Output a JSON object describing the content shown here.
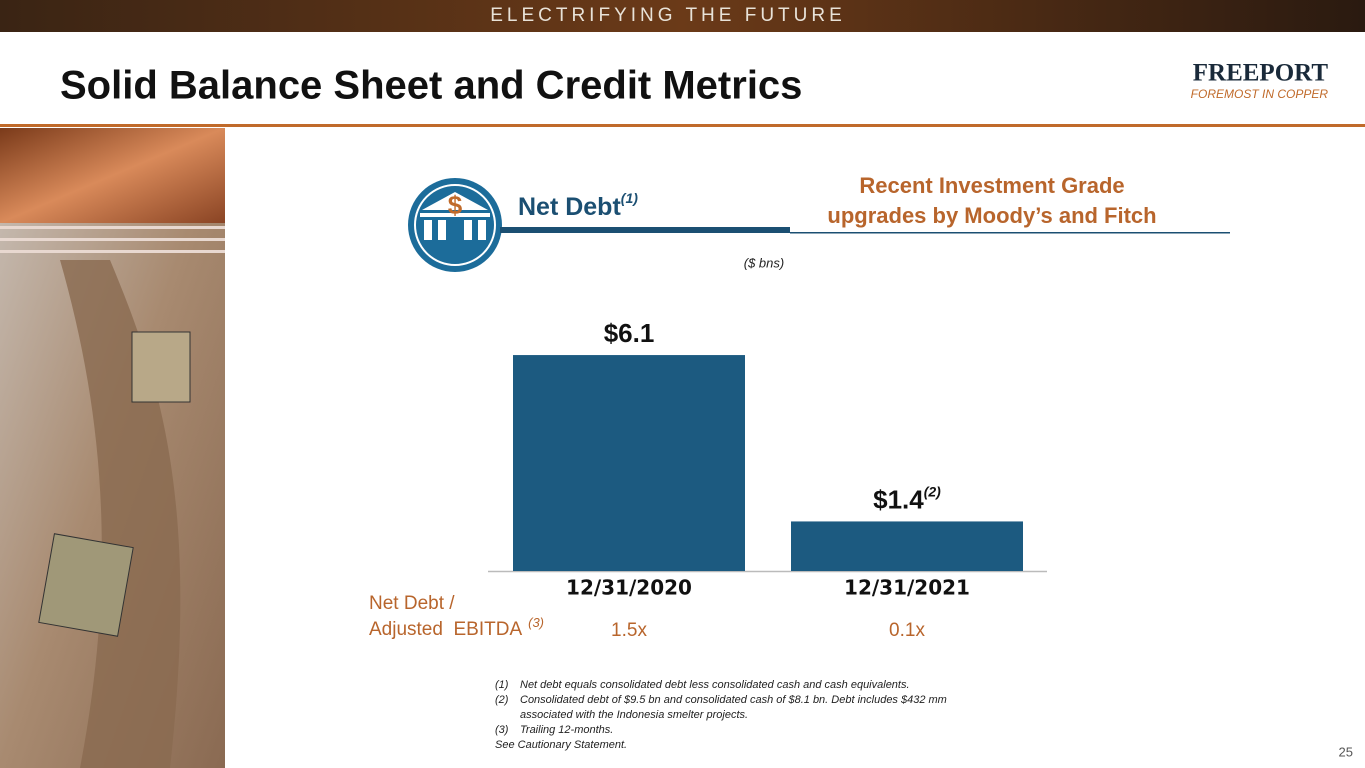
{
  "banner": "ELECTRIFYING THE FUTURE",
  "title": "Solid Balance Sheet and Credit Metrics",
  "logo": {
    "name": "FREEPORT",
    "tagline": "FOREMOST IN COPPER"
  },
  "callout": [
    "Recent Investment Grade",
    "upgrades by Moody’s and Fitch"
  ],
  "chart_data": {
    "type": "bar",
    "title": "Net Debt",
    "title_note": "(1)",
    "subtitle": "($ bns)",
    "categories": [
      "12/31/2020",
      "12/31/2021"
    ],
    "values": [
      6.1,
      1.4
    ],
    "value_labels": [
      "$6.1",
      "$1.4"
    ],
    "value_notes": [
      null,
      "(2)"
    ],
    "color": "#1c5a80"
  },
  "ratios": {
    "label": [
      "Net Debt /",
      "Adjusted  EBITDA"
    ],
    "note": "(3)",
    "values": [
      "1.5x",
      "0.1x"
    ]
  },
  "footnotes": [
    {
      "marker": "(1)",
      "lines": [
        "Net debt equals consolidated debt less consolidated cash and cash equivalents."
      ]
    },
    {
      "marker": "(2)",
      "lines": [
        "Consolidated debt of $9.5 bn and consolidated cash of $8.1 bn. Debt includes $432 mm",
        "associated with the Indonesia smelter projects."
      ]
    },
    {
      "marker": "(3)",
      "lines": [
        "Trailing 12-months."
      ]
    }
  ],
  "cautionary": "See Cautionary Statement.",
  "page_number": "25"
}
